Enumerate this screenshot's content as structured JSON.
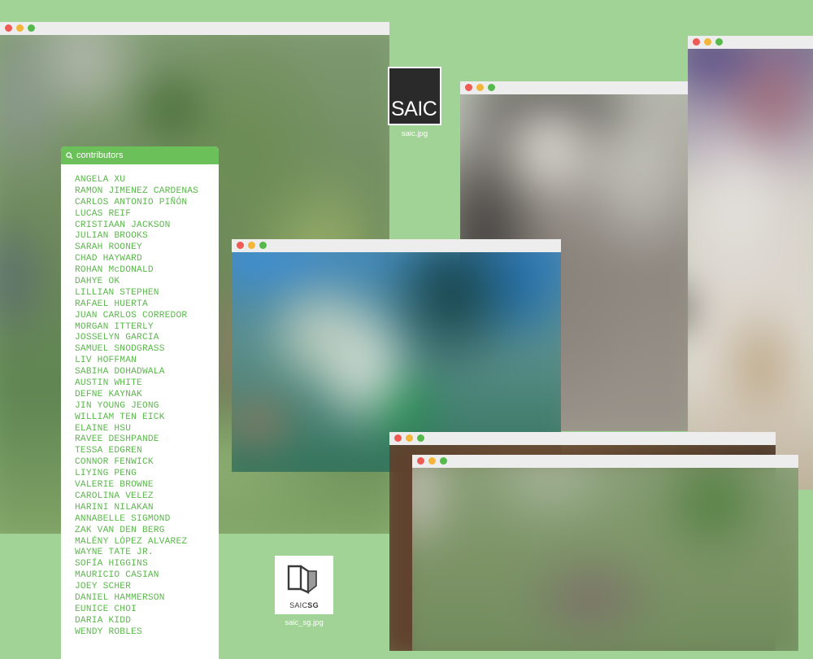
{
  "windows": {
    "w1": "window-campus-photo",
    "w2": "window-portrait",
    "w3": "window-crowd",
    "w4": "window-building",
    "w5": "window-brown",
    "w6": "window-garden"
  },
  "contributors": {
    "title": "contributors",
    "names": [
      "ANGELA XU",
      "RAMON JIMENEZ CARDENAS",
      "CARLOS ANTONIO PIÑÓN",
      "LUCAS REIF",
      "CRISTIAAN JACKSON",
      "JULIAN BROOKS",
      "SARAH ROONEY",
      "CHAD HAYWARD",
      "ROHAN McDONALD",
      "DAHYE OK",
      "LILLIAN STEPHEN",
      "RAFAEL HUERTA",
      "JUAN CARLOS CORREDOR",
      "MORGAN ITTERLY",
      "JOSSELYN GARCIA",
      "SAMUEL SNODGRASS",
      "LIV HOFFMAN",
      "SABIHA DOHADWALA",
      "AUSTIN WHITE",
      "DEFNE KAYNAK",
      "JIN YOUNG JEONG",
      "WILLIAM TEN EICK",
      "ELAINE HSU",
      "RAVEE DESHPANDE",
      "TESSA EDGREN",
      "CONNOR FENWICK",
      "LIYING PENG",
      "VALERIE BROWNE",
      "CAROLINA VELEZ",
      "HARINI NILAKAN",
      "ANNABELLE SIGMOND",
      "ZAK VAN DEN BERG",
      "MALÉNY LÓPEZ ALVAREZ",
      "WAYNE TATE JR.",
      "SOFÍA HIGGINS",
      "MAURICIO CASIAN",
      "JOEY SCHER",
      "DANIEL HAMMERSON",
      "EUNICE CHOI",
      "DARIA KIDD",
      "WENDY ROBLES"
    ]
  },
  "files": {
    "saic": {
      "logo_text": "SAIC",
      "filename": "saic.jpg"
    },
    "saic_sg": {
      "logo_text_a": "SAIC",
      "logo_text_b": "SG",
      "filename": "saic_sg.jpg"
    }
  },
  "colors": {
    "desktop": "#a2d396",
    "panel_header": "#6cc05a",
    "name_text": "#5cb84d"
  }
}
